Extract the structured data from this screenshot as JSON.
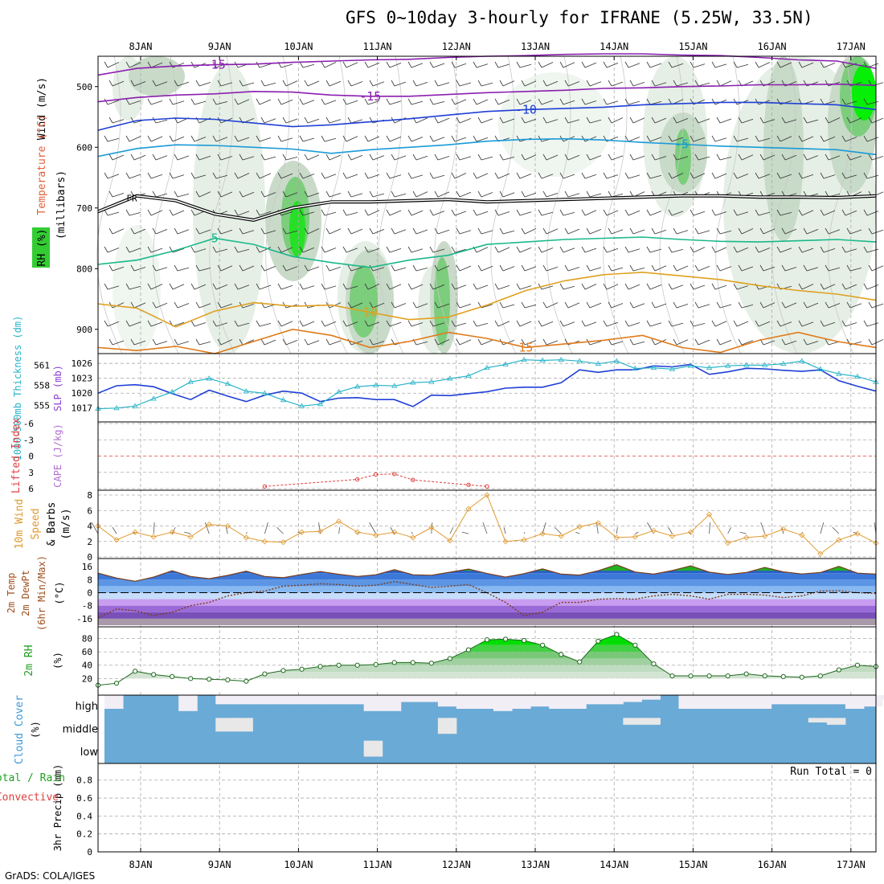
{
  "title": "GFS 0~10day 3-hourly for IFRANE (5.25W, 33.5N)",
  "footer": "GrADS: COLA/IGES",
  "days": [
    "8JAN",
    "9JAN",
    "10JAN",
    "11JAN",
    "12JAN",
    "13JAN",
    "14JAN",
    "15JAN",
    "16JAN",
    "17JAN"
  ],
  "colors": {
    "grid": "#aaaaaa",
    "frame": "#000000"
  },
  "chart_data": [
    {
      "id": "upper-air",
      "type": "heatmap",
      "ylabel_parts": [
        "Wind (m/s)",
        "Temperature (°C)",
        "RH (%)",
        "(millibars)"
      ],
      "yticks": [
        "500",
        "600",
        "700",
        "800",
        "900"
      ],
      "ylim": [
        450,
        940
      ],
      "pressure_levels": [
        500,
        600,
        700,
        800,
        900
      ],
      "freezing_level_label": "FR",
      "temperature_contours": [
        {
          "label": "-15",
          "color": "#8a1fb0",
          "p": [
            481,
            470,
            466,
            464,
            463,
            460,
            458,
            456,
            455,
            452,
            450,
            449,
            447,
            446,
            446,
            448,
            449,
            452,
            456,
            458,
            470
          ]
        },
        {
          "label": "-15",
          "color": "#8a1fb0",
          "p": [
            525,
            518,
            514,
            512,
            508,
            509,
            514,
            516,
            516,
            513,
            510,
            508,
            506,
            503,
            502,
            500,
            499,
            497,
            497,
            496,
            498
          ]
        },
        {
          "label": "-10",
          "color": "#1f3fd6",
          "p": [
            572,
            556,
            552,
            554,
            560,
            566,
            563,
            558,
            553,
            547,
            541,
            538,
            536,
            534,
            530,
            528,
            526,
            526,
            528,
            530,
            538
          ]
        },
        {
          "label": "-5",
          "color": "#1a9ad8",
          "p": [
            615,
            602,
            596,
            597,
            600,
            603,
            610,
            604,
            600,
            596,
            590,
            587,
            586,
            588,
            592,
            595,
            598,
            600,
            602,
            604,
            612
          ]
        },
        {
          "label": "5",
          "color": "#1ab88a",
          "p": [
            793,
            786,
            770,
            750,
            760,
            780,
            790,
            798,
            786,
            778,
            760,
            756,
            752,
            750,
            748,
            752,
            755,
            756,
            754,
            752,
            756
          ]
        },
        {
          "label": "10",
          "color": "#e0a020",
          "p": [
            858,
            865,
            896,
            870,
            856,
            862,
            860,
            872,
            884,
            880,
            860,
            836,
            820,
            810,
            806,
            812,
            818,
            828,
            836,
            842,
            852
          ]
        },
        {
          "label": "15",
          "color": "#e07a1a",
          "p": [
            930,
            935,
            928,
            940,
            920,
            900,
            910,
            930,
            920,
            905,
            915,
            930,
            924,
            918,
            910,
            930,
            938,
            918,
            905,
            920,
            930
          ]
        }
      ],
      "freezing_level_p": [
        706,
        680,
        688,
        710,
        720,
        700,
        690,
        690,
        688,
        686,
        690,
        688,
        686,
        684,
        682,
        680,
        680,
        682,
        682,
        683,
        680
      ],
      "rh_levels": [
        30,
        50,
        70,
        90
      ]
    },
    {
      "id": "thickness-slp",
      "type": "line",
      "ylabel_left": "1000-500mb Thickness (dm)",
      "ylabel_right": "SLP (mb)",
      "yticks_left": [
        "555",
        "558",
        "561"
      ],
      "yticks_right": [
        "1017",
        "1020",
        "1023",
        "1026"
      ],
      "series": [
        {
          "name": "SLP (mb)",
          "color": "#1f3fd6",
          "axis": "right",
          "values": [
            1020.0,
            1021.5,
            1021.7,
            1021.3,
            1019.9,
            1018.7,
            1020.6,
            1019.4,
            1018.3,
            1019.6,
            1020.4,
            1020.0,
            1018.3,
            1019.0,
            1019.1,
            1018.7,
            1018.7,
            1017.3,
            1019.6,
            1019.5,
            1019.9,
            1020.3,
            1021.0,
            1021.2,
            1021.2,
            1022.1,
            1024.7,
            1024.2,
            1024.7,
            1024.7,
            1025.5,
            1025.3,
            1025.8,
            1023.8,
            1024.3,
            1025.0,
            1024.9,
            1024.6,
            1024.4,
            1024.7,
            1022.5,
            1021.4,
            1020.4
          ]
        },
        {
          "name": "Thickness (dm)",
          "color": "#28b4c8",
          "axis": "left",
          "values": [
            554.5,
            554.6,
            554.9,
            556.0,
            557.0,
            558.5,
            559.0,
            558.2,
            557.1,
            556.8,
            555.8,
            554.9,
            555.2,
            557.0,
            557.8,
            558.0,
            557.9,
            558.4,
            558.5,
            559.0,
            559.4,
            560.6,
            561.1,
            561.8,
            561.7,
            561.8,
            561.6,
            561.2,
            561.6,
            560.5,
            560.6,
            560.4,
            560.9,
            560.6,
            560.9,
            561.0,
            561.0,
            561.2,
            561.6,
            560.4,
            559.7,
            559.3,
            558.5
          ]
        }
      ]
    },
    {
      "id": "lifted-index-cape",
      "type": "line",
      "ylabel_left": "Lifted Index",
      "ylabel_right": "CAPE (J/kg)",
      "yticks": [
        "-6",
        "-3",
        "0",
        "3",
        "6"
      ],
      "ylim": [
        -6,
        6
      ],
      "series": [
        {
          "name": "Lifted Index",
          "color": "#e04040",
          "values": [
            null,
            null,
            null,
            null,
            null,
            null,
            null,
            null,
            null,
            5.6,
            null,
            null,
            null,
            null,
            4.3,
            3.4,
            3.3,
            4.4,
            null,
            null,
            5.3,
            5.6,
            null,
            null,
            null,
            null,
            null,
            null,
            null,
            null,
            null,
            null,
            null,
            null,
            null,
            null,
            null,
            null,
            null,
            null,
            null,
            null,
            null
          ]
        }
      ]
    },
    {
      "id": "wind10m",
      "type": "line",
      "ylabel_parts": [
        "10m Wind",
        "Speed",
        "& Barbs",
        "(m/s)"
      ],
      "yticks": [
        "0",
        "2",
        "4",
        "6",
        "8"
      ],
      "ylim": [
        0,
        8
      ],
      "series": [
        {
          "name": "10m Wind Speed",
          "color": "#e09a30",
          "values": [
            4.0,
            2.2,
            3.2,
            2.6,
            3.2,
            2.6,
            4.2,
            4.0,
            2.5,
            2.0,
            1.9,
            3.2,
            3.3,
            4.6,
            3.2,
            2.8,
            3.2,
            2.5,
            3.8,
            2.1,
            6.2,
            8.0,
            2.0,
            2.2,
            3.0,
            2.7,
            3.9,
            4.4,
            2.5,
            2.6,
            3.4,
            2.7,
            3.2,
            5.5,
            1.8,
            2.5,
            2.7,
            3.6,
            2.8,
            0.4,
            2.2,
            3.0,
            1.8
          ]
        }
      ]
    },
    {
      "id": "temp2m",
      "type": "area",
      "ylabel_parts": [
        "2m Temp",
        "2m DewPt",
        "(6hr Min/Max)",
        "(°C)"
      ],
      "yticks": [
        "16",
        "8",
        "0",
        "-8",
        "-16"
      ],
      "ylim": [
        -20,
        20
      ],
      "series": [
        {
          "name": "2m Temp",
          "values": [
            12.0,
            9.0,
            7.0,
            9.6,
            13.5,
            10.0,
            8.6,
            10.6,
            13.2,
            10.0,
            9.2,
            11.2,
            13.0,
            11.3,
            10.0,
            11.0,
            14.1,
            11.0,
            10.7,
            12.6,
            14.5,
            11.8,
            9.6,
            11.7,
            14.6,
            11.4,
            10.8,
            13.5,
            17.2,
            12.7,
            11.4,
            13.6,
            16.5,
            12.6,
            11.2,
            12.4,
            15.5,
            12.8,
            11.5,
            12.4,
            16.2,
            12.0,
            11.4
          ]
        },
        {
          "name": "2m DewPt",
          "values": [
            -15.5,
            -10.0,
            -11.0,
            -14.0,
            -12.0,
            -8.0,
            -6.0,
            -2.0,
            0.0,
            1.0,
            4.0,
            4.6,
            5.5,
            5.0,
            4.0,
            4.6,
            6.8,
            5.0,
            3.2,
            4.0,
            5.0,
            0.0,
            -6.0,
            -14.0,
            -12.0,
            -6.0,
            -6.0,
            -4.0,
            -3.6,
            -4.0,
            -2.0,
            -1.0,
            -2.0,
            -4.0,
            -1.0,
            -1.0,
            -1.5,
            -3.0,
            -2.0,
            1.0,
            1.2,
            0.0,
            -0.5
          ]
        }
      ]
    },
    {
      "id": "rh2m",
      "type": "area",
      "ylabel_parts": [
        "2m RH",
        "(%)"
      ],
      "yticks": [
        "20",
        "40",
        "60",
        "80"
      ],
      "ylim": [
        0,
        95
      ],
      "series": [
        {
          "name": "2m RH",
          "color": "#20a020",
          "values": [
            10,
            13,
            31,
            26,
            23,
            20,
            19,
            18,
            16,
            27,
            32,
            34,
            38,
            40,
            40,
            41,
            44,
            44,
            43,
            50,
            63,
            78,
            79,
            77,
            70,
            56,
            45,
            76,
            86,
            70,
            42,
            24,
            24,
            24,
            24,
            27,
            24,
            23,
            22,
            24,
            33,
            40,
            38
          ]
        }
      ]
    },
    {
      "id": "cloud-cover",
      "type": "heatmap",
      "ylabel_parts": [
        "Cloud Cover",
        "(%)"
      ],
      "yticks": [
        "high",
        "middle",
        "low"
      ],
      "series": [
        {
          "name": "high",
          "values": [
            60,
            0,
            0,
            0,
            70,
            0,
            40,
            40,
            40,
            40,
            40,
            40,
            40,
            40,
            70,
            70,
            30,
            30,
            50,
            60,
            60,
            70,
            60,
            50,
            60,
            60,
            40,
            40,
            30,
            20,
            0,
            60,
            60,
            60,
            60,
            60,
            40,
            40,
            40,
            40,
            60,
            50,
            20
          ]
        },
        {
          "name": "middle",
          "values": [
            0,
            0,
            0,
            0,
            0,
            0,
            60,
            60,
            0,
            0,
            0,
            0,
            0,
            0,
            0,
            0,
            0,
            0,
            70,
            0,
            0,
            0,
            0,
            0,
            0,
            0,
            0,
            0,
            30,
            30,
            0,
            0,
            0,
            0,
            0,
            0,
            0,
            0,
            20,
            30,
            0,
            0,
            0
          ]
        },
        {
          "name": "low",
          "values": [
            0,
            0,
            0,
            0,
            0,
            0,
            0,
            0,
            0,
            0,
            0,
            0,
            0,
            0,
            70,
            0,
            0,
            0,
            0,
            0,
            0,
            0,
            0,
            0,
            0,
            0,
            0,
            0,
            0,
            0,
            0,
            0,
            0,
            0,
            0,
            0,
            0,
            0,
            0,
            0,
            0,
            0,
            0
          ]
        }
      ]
    },
    {
      "id": "precip",
      "type": "bar",
      "ylabel_parts": [
        "3hr Precip (mm)",
        "Total / Rain",
        "Convective"
      ],
      "yticks": [
        "0",
        "0.2",
        "0.4",
        "0.6",
        "0.8"
      ],
      "ylim": [
        0,
        0.95
      ],
      "run_total": "Run Total = 0",
      "series": [
        {
          "name": "Precip",
          "values": []
        }
      ]
    }
  ]
}
